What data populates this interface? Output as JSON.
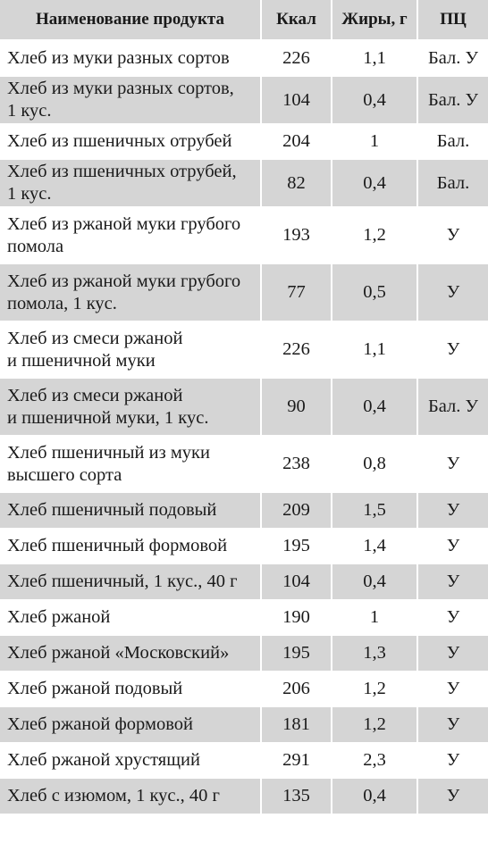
{
  "table": {
    "headers": [
      "Наименование продукта",
      "Ккал",
      "Жиры, г",
      "ПЦ"
    ],
    "rows": [
      {
        "name": "Хлеб из муки разных сортов",
        "kcal": "226",
        "fat": "1,1",
        "pc": "Бал. У"
      },
      {
        "name": "Хлеб из муки разных сортов,\n1 кус.",
        "kcal": "104",
        "fat": "0,4",
        "pc": "Бал. У"
      },
      {
        "name": "Хлеб из пшеничных отрубей",
        "kcal": "204",
        "fat": "1",
        "pc": "Бал."
      },
      {
        "name": "Хлеб из пшеничных отрубей,\n1 кус.",
        "kcal": "82",
        "fat": "0,4",
        "pc": "Бал."
      },
      {
        "name": "Хлеб из ржаной муки грубого\nпомола",
        "kcal": "193",
        "fat": "1,2",
        "pc": "У"
      },
      {
        "name": "Хлеб из ржаной муки грубого\nпомола, 1 кус.",
        "kcal": "77",
        "fat": "0,5",
        "pc": "У"
      },
      {
        "name": "Хлеб из смеси ржаной\nи пшеничной муки",
        "kcal": "226",
        "fat": "1,1",
        "pc": "У"
      },
      {
        "name": "Хлеб из смеси ржаной\nи пшеничной муки, 1 кус.",
        "kcal": "90",
        "fat": "0,4",
        "pc": "Бал. У"
      },
      {
        "name": "Хлеб пшеничный из муки\nвысшего сорта",
        "kcal": "238",
        "fat": "0,8",
        "pc": "У"
      },
      {
        "name": "Хлеб пшеничный подовый",
        "kcal": "209",
        "fat": "1,5",
        "pc": "У"
      },
      {
        "name": "Хлеб пшеничный формовой",
        "kcal": "195",
        "fat": "1,4",
        "pc": "У"
      },
      {
        "name": "Хлеб пшеничный, 1 кус., 40 г",
        "kcal": "104",
        "fat": "0,4",
        "pc": "У"
      },
      {
        "name": "Хлеб ржаной",
        "kcal": "190",
        "fat": "1",
        "pc": "У"
      },
      {
        "name": "Хлеб ржаной «Московский»",
        "kcal": "195",
        "fat": "1,3",
        "pc": "У"
      },
      {
        "name": "Хлеб ржаной подовый",
        "kcal": "206",
        "fat": "1,2",
        "pc": "У"
      },
      {
        "name": "Хлеб ржаной формовой",
        "kcal": "181",
        "fat": "1,2",
        "pc": "У"
      },
      {
        "name": "Хлеб ржаной хрустящий",
        "kcal": "291",
        "fat": "2,3",
        "pc": "У"
      },
      {
        "name": "Хлеб с изюмом, 1 кус., 40 г",
        "kcal": "135",
        "fat": "0,4",
        "pc": "У"
      }
    ]
  }
}
